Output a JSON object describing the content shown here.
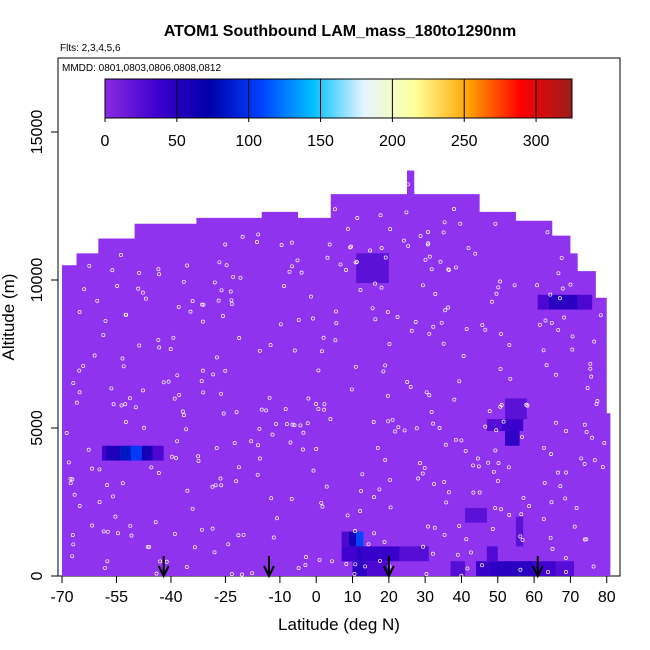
{
  "chart_data": {
    "type": "heatmap",
    "title": "ATOM1 Southbound LAM_mass_180to1290nm",
    "subtitle_flights": "Flts: 2,3,4,5,6",
    "subtitle_dates": "MMDD: 0801,0803,0806,0808,0812",
    "xlabel": "Latitude (deg N)",
    "ylabel": "Altitude (m)",
    "xlim": [
      -70,
      82
    ],
    "ylim": [
      0,
      17500
    ],
    "x_ticks": [
      "-70",
      "-55",
      "-40",
      "-25",
      "-10",
      "0",
      "10",
      "20",
      "30",
      "40",
      "50",
      "60",
      "70",
      "80"
    ],
    "x_tick_values": [
      -70,
      -55,
      -40,
      -25,
      -10,
      0,
      10,
      20,
      30,
      40,
      50,
      60,
      70,
      80
    ],
    "y_ticks": [
      "0",
      "5000",
      "10000",
      "15000"
    ],
    "y_tick_values": [
      0,
      5000,
      10000,
      15000
    ],
    "colorbar": {
      "min": 0,
      "max": 325,
      "ticks": [
        "0",
        "50",
        "100",
        "150",
        "200",
        "250",
        "300"
      ],
      "tick_values": [
        0,
        50,
        100,
        150,
        200,
        250,
        300
      ],
      "colors": [
        "#8a2be2",
        "#3f00cf",
        "#0000a8",
        "#0040ff",
        "#00bfff",
        "#e6f5ff",
        "#ffff99",
        "#ffa500",
        "#ff0000",
        "#9b1c1c"
      ]
    },
    "background_value": 15,
    "background_color": "#8f33ee",
    "envelope_top": [
      {
        "lat": -70,
        "alt": 10500
      },
      {
        "lat": -66,
        "alt": 10900
      },
      {
        "lat": -60,
        "alt": 11400
      },
      {
        "lat": -50,
        "alt": 11900
      },
      {
        "lat": -33,
        "alt": 12100
      },
      {
        "lat": -15,
        "alt": 12300
      },
      {
        "lat": -5,
        "alt": 12100
      },
      {
        "lat": 4,
        "alt": 12900
      },
      {
        "lat": 25,
        "alt": 13700
      },
      {
        "lat": 27,
        "alt": 12900
      },
      {
        "lat": 45,
        "alt": 12300
      },
      {
        "lat": 55,
        "alt": 12000
      },
      {
        "lat": 65,
        "alt": 11500
      },
      {
        "lat": 70,
        "alt": 10900
      },
      {
        "lat": 72,
        "alt": 10300
      },
      {
        "lat": 77,
        "alt": 9400
      },
      {
        "lat": 80,
        "alt": 5500
      },
      {
        "lat": 81,
        "alt": 500
      }
    ],
    "patches": [
      {
        "lat1": -59,
        "lat2": -58,
        "alt1": 3900,
        "alt2": 4400,
        "value": 35
      },
      {
        "lat1": -58,
        "lat2": -54,
        "alt1": 3900,
        "alt2": 4400,
        "value": 55
      },
      {
        "lat1": -54,
        "lat2": -51,
        "alt1": 3900,
        "alt2": 4400,
        "value": 85
      },
      {
        "lat1": -51,
        "lat2": -48,
        "alt1": 3900,
        "alt2": 4400,
        "value": 105
      },
      {
        "lat1": -48,
        "lat2": -45,
        "alt1": 3900,
        "alt2": 4400,
        "value": 60
      },
      {
        "lat1": -45,
        "lat2": -42,
        "alt1": 3900,
        "alt2": 4400,
        "value": 30
      },
      {
        "lat1": 7,
        "lat2": 9,
        "alt1": 1000,
        "alt2": 1500,
        "value": 30
      },
      {
        "lat1": 9,
        "lat2": 11,
        "alt1": 1000,
        "alt2": 1500,
        "value": 60
      },
      {
        "lat1": 11,
        "lat2": 13,
        "alt1": 1000,
        "alt2": 1500,
        "value": 110
      },
      {
        "lat1": 7,
        "lat2": 11,
        "alt1": 500,
        "alt2": 1000,
        "value": 35
      },
      {
        "lat1": 11,
        "lat2": 13,
        "alt1": 500,
        "alt2": 1000,
        "value": 45
      },
      {
        "lat1": 13,
        "lat2": 23,
        "alt1": 500,
        "alt2": 1000,
        "value": 40
      },
      {
        "lat1": 23,
        "lat2": 31,
        "alt1": 500,
        "alt2": 1000,
        "value": 25
      },
      {
        "lat1": 10,
        "lat2": 14,
        "alt1": 0,
        "alt2": 500,
        "value": 45
      },
      {
        "lat1": 14,
        "lat2": 20,
        "alt1": 0,
        "alt2": 500,
        "value": 30
      },
      {
        "lat1": 44,
        "lat2": 48,
        "alt1": 0,
        "alt2": 500,
        "value": 40
      },
      {
        "lat1": 48,
        "lat2": 60,
        "alt1": 0,
        "alt2": 500,
        "value": 48
      },
      {
        "lat1": 60,
        "lat2": 66,
        "alt1": 0,
        "alt2": 500,
        "value": 35
      },
      {
        "lat1": 66,
        "lat2": 71,
        "alt1": 0,
        "alt2": 500,
        "value": 25
      },
      {
        "lat1": 37,
        "lat2": 41,
        "alt1": 0,
        "alt2": 500,
        "value": 25
      },
      {
        "lat1": 47,
        "lat2": 50,
        "alt1": 500,
        "alt2": 1000,
        "value": 28
      },
      {
        "lat1": 61,
        "lat2": 64,
        "alt1": 9000,
        "alt2": 9500,
        "value": 30
      },
      {
        "lat1": 64,
        "lat2": 72,
        "alt1": 9000,
        "alt2": 9500,
        "value": 48
      },
      {
        "lat1": 72,
        "lat2": 76,
        "alt1": 9000,
        "alt2": 9500,
        "value": 30
      },
      {
        "lat1": 47,
        "lat2": 51,
        "alt1": 4900,
        "alt2": 5300,
        "value": 25
      },
      {
        "lat1": 51,
        "lat2": 57,
        "alt1": 4900,
        "alt2": 5300,
        "value": 38
      },
      {
        "lat1": 52,
        "lat2": 56,
        "alt1": 4400,
        "alt2": 4900,
        "value": 45
      },
      {
        "lat1": 52,
        "lat2": 58,
        "alt1": 5300,
        "alt2": 6000,
        "value": 22
      },
      {
        "lat1": 11,
        "lat2": 20,
        "alt1": 9900,
        "alt2": 10900,
        "value": 22
      },
      {
        "lat1": 41,
        "lat2": 47,
        "alt1": 1800,
        "alt2": 2300,
        "value": 22
      },
      {
        "lat1": 55,
        "lat2": 57,
        "alt1": 1000,
        "alt2": 2000,
        "value": 22
      }
    ],
    "arrows_lat": [
      -42,
      -13,
      20,
      61
    ]
  }
}
